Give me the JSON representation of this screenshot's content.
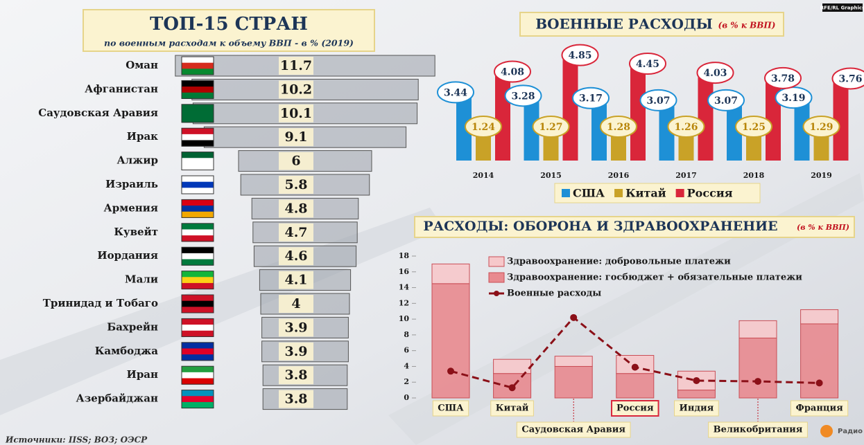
{
  "chart_data": [
    {
      "type": "hbar",
      "title": "ТОП-15 СТРАН",
      "subtitle": "по военным расходам к объему ВВП - в % (2019)",
      "categories": [
        "Оман",
        "Афганистан",
        "Саудовская Аравия",
        "Ирак",
        "Алжир",
        "Израиль",
        "Армения",
        "Кувейт",
        "Иордания",
        "Мали",
        "Тринидад и Тобаго",
        "Бахрейн",
        "Камбоджа",
        "Иран",
        "Азербайджан"
      ],
      "values": [
        11.7,
        10.2,
        10.1,
        9.1,
        6,
        5.8,
        4.8,
        4.7,
        4.6,
        4.1,
        4,
        3.9,
        3.9,
        3.8,
        3.8
      ],
      "color": "#9aa0aa"
    },
    {
      "type": "bar",
      "title": "ВОЕННЫЕ РАСХОДЫ",
      "subtitle": "(в % к ВВП)",
      "categories": [
        "2014",
        "2015",
        "2016",
        "2017",
        "2018",
        "2019"
      ],
      "series": [
        {
          "name": "США",
          "color": "#1e90d6",
          "values": [
            3.44,
            3.28,
            3.17,
            3.07,
            3.07,
            3.19
          ]
        },
        {
          "name": "Китай",
          "color": "#c9a227",
          "values": [
            1.24,
            1.27,
            1.28,
            1.26,
            1.25,
            1.29
          ]
        },
        {
          "name": "Россия",
          "color": "#d9263a",
          "values": [
            4.08,
            4.85,
            4.45,
            4.03,
            3.78,
            3.76
          ]
        }
      ]
    },
    {
      "type": "combo",
      "title": "РАСХОДЫ: ОБОРОНА И ЗДРАВООХРАНЕНИЕ",
      "subtitle": "(в % к ВВП)",
      "categories": [
        "США",
        "Китай",
        "Саудовская Аравия",
        "Россия",
        "Индия",
        "Великобритания",
        "Франция"
      ],
      "stacked": true,
      "series": [
        {
          "name": "Здравоохранение: госбюджет + обязательные платежи",
          "type": "bar",
          "color": "#e88a8f",
          "values": [
            14.5,
            3.1,
            4.0,
            3.1,
            1.0,
            7.6,
            9.4
          ]
        },
        {
          "name": "Здравоохранение: добровольные платежи",
          "type": "bar",
          "color": "#f6c8ca",
          "values": [
            2.5,
            1.8,
            1.3,
            2.3,
            2.4,
            2.2,
            1.8
          ]
        },
        {
          "name": "Военные расходы",
          "type": "line",
          "color": "#8b1018",
          "values": [
            3.4,
            1.3,
            10.2,
            3.9,
            2.2,
            2.1,
            1.9
          ]
        }
      ],
      "ylim": [
        0,
        18
      ],
      "yticks": [
        0,
        2,
        4,
        6,
        8,
        10,
        12,
        14,
        16,
        18
      ]
    }
  ],
  "credit": "RFE/RL Graphics",
  "source": "Источники: IISS; ВОЗ; ОЭСР",
  "logo_text": "Радио Свобода"
}
